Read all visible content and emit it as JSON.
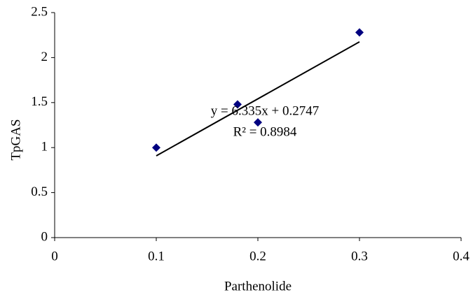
{
  "chart_data": {
    "type": "scatter",
    "x_label": "Parthenolide",
    "y_label": "TpGAS",
    "series": [
      {
        "color": "#000080",
        "x": [
          0.1,
          0.18,
          0.2,
          0.3
        ],
        "values": [
          1.0,
          1.48,
          1.28,
          2.28
        ]
      }
    ],
    "trendline": {
      "slope": 6.335,
      "intercept": 0.2747,
      "label": "y = 6.335x + 0.2747",
      "r2_label": "R² = 0.8984"
    },
    "xlim": [
      0,
      0.4
    ],
    "xticks": [
      0,
      0.1,
      0.2,
      0.3,
      0.4
    ],
    "ylim": [
      0,
      2.5
    ],
    "yticks": [
      0,
      0.5,
      1,
      1.5,
      2,
      2.5
    ],
    "grid": false
  }
}
